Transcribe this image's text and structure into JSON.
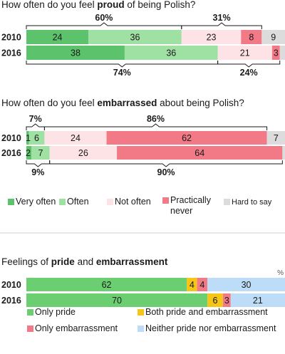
{
  "colors": {
    "very_often": "#5cc26b",
    "often": "#9fe0a3",
    "not_often": "#fde3e6",
    "practically_never": "#f27a86",
    "hard_to_say": "#dcdcdc",
    "only_pride": "#6bcf72",
    "both": "#f5c518",
    "only_embarrassment": "#f27a86",
    "neither": "#bcdcf7"
  },
  "chart_data": [
    {
      "type": "bar",
      "orientation": "horizontal",
      "stacked": true,
      "title": {
        "prefix": "How often do you feel ",
        "bold": "proud",
        "suffix": " of being Polish?"
      },
      "categories": [
        "2010",
        "2016"
      ],
      "series": [
        {
          "name": "Very often",
          "color_key": "very_often",
          "values": [
            24,
            38
          ]
        },
        {
          "name": "Often",
          "color_key": "often",
          "values": [
            36,
            36
          ]
        },
        {
          "name": "Not often",
          "color_key": "not_often",
          "values": [
            23,
            21
          ]
        },
        {
          "name": "Practically never",
          "color_key": "practically_never",
          "values": [
            8,
            3
          ]
        },
        {
          "name": "Hard to say",
          "color_key": "hard_to_say",
          "values": [
            9,
            2
          ]
        }
      ],
      "brackets": [
        {
          "row": 0,
          "from": 0,
          "to": 2,
          "position": "above",
          "label": "60%"
        },
        {
          "row": 0,
          "from": 2,
          "to": 4,
          "position": "above",
          "label": "31%"
        },
        {
          "row": 1,
          "from": 0,
          "to": 2,
          "position": "below",
          "label": "74%"
        },
        {
          "row": 1,
          "from": 2,
          "to": 4,
          "position": "below",
          "label": "24%"
        }
      ]
    },
    {
      "type": "bar",
      "orientation": "horizontal",
      "stacked": true,
      "title": {
        "prefix": "How often do you feel ",
        "bold": "embarrassed",
        "suffix": " about being Polish?"
      },
      "categories": [
        "2010",
        "2016"
      ],
      "series": [
        {
          "name": "Very often",
          "color_key": "very_often",
          "values": [
            1,
            2
          ]
        },
        {
          "name": "Often",
          "color_key": "often",
          "values": [
            6,
            7
          ]
        },
        {
          "name": "Not often",
          "color_key": "not_often",
          "values": [
            24,
            26
          ]
        },
        {
          "name": "Practically never",
          "color_key": "practically_never",
          "values": [
            62,
            64
          ]
        },
        {
          "name": "Hard to say",
          "color_key": "hard_to_say",
          "values": [
            7,
            1
          ]
        }
      ],
      "brackets": [
        {
          "row": 0,
          "from": 0,
          "to": 2,
          "position": "above",
          "label": "7%"
        },
        {
          "row": 0,
          "from": 2,
          "to": 4,
          "position": "above",
          "label": "86%"
        },
        {
          "row": 1,
          "from": 0,
          "to": 2,
          "position": "below",
          "label": "9%"
        },
        {
          "row": 1,
          "from": 2,
          "to": 4,
          "position": "below",
          "label": "90%"
        }
      ]
    },
    {
      "type": "bar",
      "orientation": "horizontal",
      "stacked": true,
      "title": {
        "prefix": "Feelings of ",
        "bold": "pride",
        "middle": " and ",
        "bold2": "embarrassment"
      },
      "unit_label": "%",
      "categories": [
        "2010",
        "2016"
      ],
      "series": [
        {
          "name": "Only pride",
          "color_key": "only_pride",
          "values": [
            62,
            70
          ]
        },
        {
          "name": "Both pride and embarrassment",
          "color_key": "both",
          "values": [
            4,
            6
          ]
        },
        {
          "name": "Only embarrassment",
          "color_key": "only_embarrassment",
          "values": [
            4,
            3
          ]
        },
        {
          "name": "Neither pride nor embarrassment",
          "color_key": "neither",
          "values": [
            30,
            21
          ]
        }
      ]
    }
  ],
  "legends": {
    "frequency": [
      {
        "label": "Very often",
        "color_key": "very_often"
      },
      {
        "label": "Often",
        "color_key": "often"
      },
      {
        "label": "Not often",
        "color_key": "not_often"
      },
      {
        "label_lines": [
          "Practically",
          "never"
        ],
        "color_key": "practically_never"
      },
      {
        "label": "Hard to say",
        "color_key": "hard_to_say"
      }
    ],
    "feelings": [
      {
        "label": "Only pride",
        "color_key": "only_pride"
      },
      {
        "label": "Both pride and embarrassment",
        "color_key": "both"
      },
      {
        "label": "Only embarrassment",
        "color_key": "only_embarrassment"
      },
      {
        "label": "Neither pride nor embarrassment",
        "color_key": "neither"
      }
    ]
  }
}
